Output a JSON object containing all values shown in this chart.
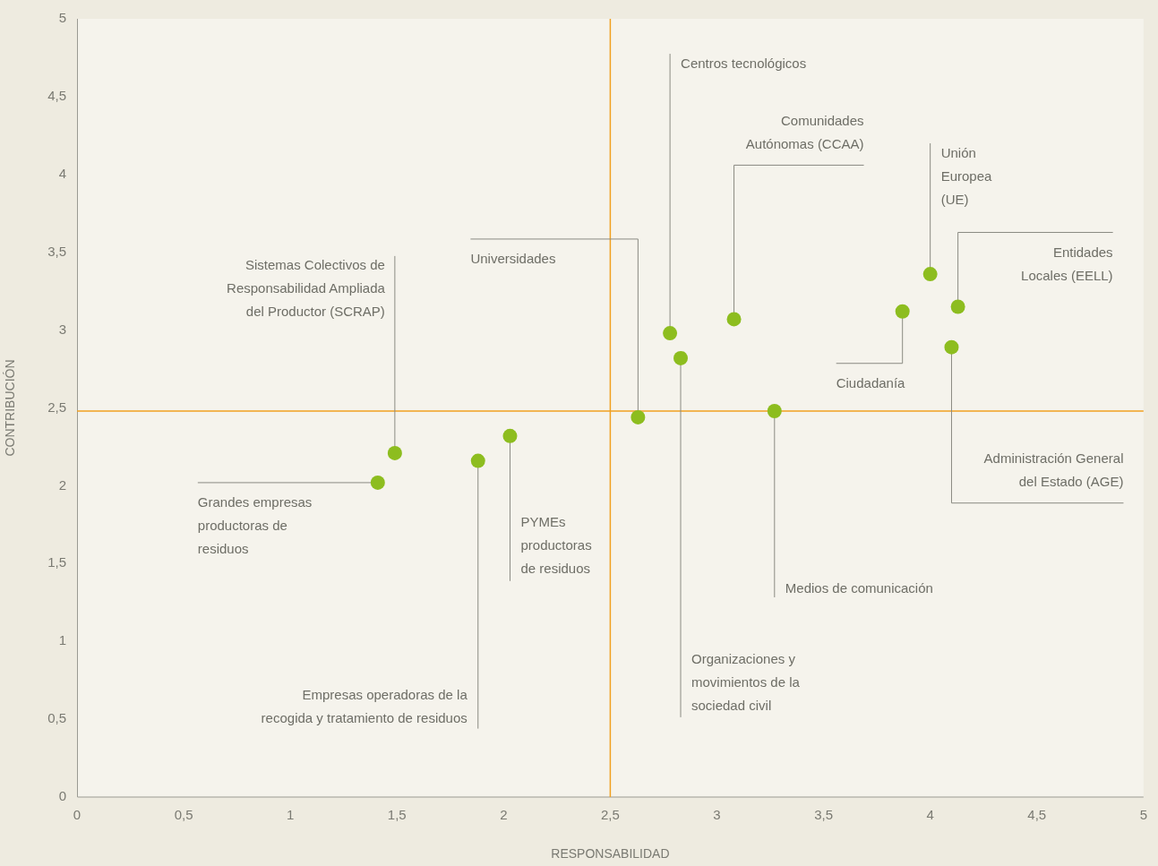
{
  "chart_data": {
    "type": "scatter",
    "xlabel": "RESPONSABILIDAD",
    "ylabel": "CONTRIBUCIÓN",
    "x": [
      1.41,
      1.49,
      1.88,
      2.03,
      2.63,
      2.78,
      2.83,
      3.08,
      3.27,
      3.87,
      4.0,
      4.13,
      4.1
    ],
    "values": [
      2.02,
      2.21,
      2.16,
      2.32,
      2.44,
      2.98,
      2.82,
      3.07,
      2.48,
      3.12,
      3.36,
      3.15,
      2.89
    ],
    "color": "#8dbd1f",
    "marker": "circle",
    "xlim": [
      0,
      5
    ],
    "ylim": [
      0,
      5
    ],
    "xticks": [
      0,
      {
        "value": 0.5,
        "label": "0,5"
      },
      1,
      {
        "value": 1.5,
        "label": "1,5"
      },
      2,
      {
        "value": 2.5,
        "label": "2,5"
      },
      3,
      {
        "value": 3.5,
        "label": "3,5"
      },
      4,
      {
        "value": 4.5,
        "label": "4,5"
      },
      5
    ],
    "yticks": [
      0,
      {
        "value": 0.5,
        "label": "0,5"
      },
      1,
      {
        "value": 1.5,
        "label": "1,5"
      },
      2,
      {
        "value": 2.5,
        "label": "2,5"
      },
      3,
      {
        "value": 3.5,
        "label": "3,5"
      },
      4,
      {
        "value": 4.5,
        "label": "4,5"
      },
      5
    ],
    "ref_lines": [
      {
        "axis": "x",
        "value": 2.5,
        "color": "#f0a020"
      },
      {
        "axis": "y",
        "value": 2.48,
        "color": "#f0a020"
      }
    ],
    "annotations": [
      {
        "text": "Grandes empresas\nproductoras de\nresiduos",
        "x": 1.41,
        "y": 2.02
      },
      {
        "text": "Sistemas Colectivos de\nResponsabilidad Ampliada\ndel Productor (SCRAP)",
        "x": 1.49,
        "y": 2.21
      },
      {
        "text": "Empresas operadoras de la\nrecogida y tratamiento de residuos",
        "x": 1.88,
        "y": 2.16
      },
      {
        "text": "PYMEs\nproductoras\nde residuos",
        "x": 2.03,
        "y": 2.32
      },
      {
        "text": "Universidades",
        "x": 2.63,
        "y": 2.44
      },
      {
        "text": "Centros tecnológicos",
        "x": 2.78,
        "y": 2.98
      },
      {
        "text": "Organizaciones y\nmovimientos de la\nsociedad civil",
        "x": 2.83,
        "y": 2.82
      },
      {
        "text": "Comunidades\nAutónomas (CCAA)",
        "x": 3.08,
        "y": 3.07
      },
      {
        "text": "Medios de comunicación",
        "x": 3.27,
        "y": 2.48
      },
      {
        "text": "Ciudadanía",
        "x": 3.87,
        "y": 3.12
      },
      {
        "text": "Unión\nEuropea\n(UE)",
        "x": 4.0,
        "y": 3.36
      },
      {
        "text": "Entidades\nLocales (EELL)",
        "x": 4.13,
        "y": 3.15
      },
      {
        "text": "Administración General\ndel Estado (AGE)",
        "x": 4.1,
        "y": 2.89
      }
    ]
  }
}
